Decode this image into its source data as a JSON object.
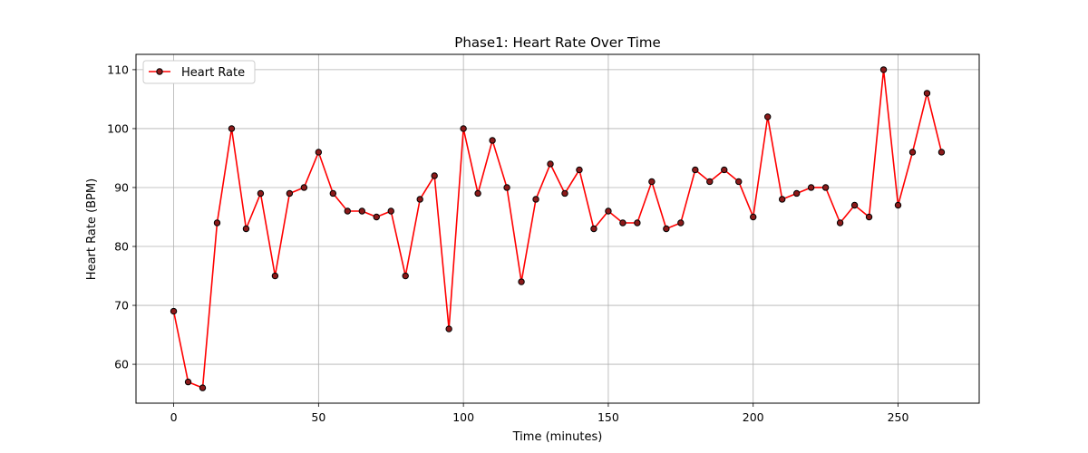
{
  "chart_data": {
    "type": "line",
    "title": "Phase1: Heart Rate Over Time",
    "xlabel": "Time (minutes)",
    "ylabel": "Heart Rate (BPM)",
    "xlim": [
      -13,
      278
    ],
    "ylim": [
      53.4,
      112.6
    ],
    "xticks": [
      0,
      50,
      100,
      150,
      200,
      250
    ],
    "yticks": [
      60,
      70,
      80,
      90,
      100,
      110
    ],
    "grid": true,
    "legend_position": "upper-left",
    "series": [
      {
        "name": "Heart Rate",
        "color": "#ff0000",
        "marker": "circle",
        "marker_fill": "#8b1a1a",
        "marker_edge": "#000000",
        "points": [
          [
            0,
            69
          ],
          [
            5,
            57
          ],
          [
            10,
            56
          ],
          [
            15,
            84
          ],
          [
            20,
            100
          ],
          [
            25,
            83
          ],
          [
            30,
            89
          ],
          [
            35,
            75
          ],
          [
            40,
            89
          ],
          [
            45,
            90
          ],
          [
            50,
            96
          ],
          [
            55,
            89
          ],
          [
            60,
            86
          ],
          [
            65,
            86
          ],
          [
            70,
            85
          ],
          [
            75,
            86
          ],
          [
            80,
            75
          ],
          [
            85,
            88
          ],
          [
            90,
            92
          ],
          [
            95,
            66
          ],
          [
            100,
            100
          ],
          [
            105,
            89
          ],
          [
            110,
            98
          ],
          [
            115,
            90
          ],
          [
            120,
            74
          ],
          [
            125,
            88
          ],
          [
            130,
            94
          ],
          [
            135,
            89
          ],
          [
            140,
            93
          ],
          [
            145,
            83
          ],
          [
            150,
            86
          ],
          [
            155,
            84
          ],
          [
            160,
            84
          ],
          [
            165,
            91
          ],
          [
            170,
            83
          ],
          [
            175,
            84
          ],
          [
            180,
            93
          ],
          [
            185,
            91
          ],
          [
            190,
            93
          ],
          [
            195,
            91
          ],
          [
            200,
            85
          ],
          [
            205,
            102
          ],
          [
            210,
            88
          ],
          [
            215,
            89
          ],
          [
            220,
            90
          ],
          [
            225,
            90
          ],
          [
            230,
            84
          ],
          [
            235,
            87
          ],
          [
            240,
            85
          ],
          [
            245,
            110
          ],
          [
            250,
            87
          ],
          [
            255,
            96
          ],
          [
            260,
            106
          ],
          [
            265,
            96
          ]
        ]
      }
    ]
  }
}
